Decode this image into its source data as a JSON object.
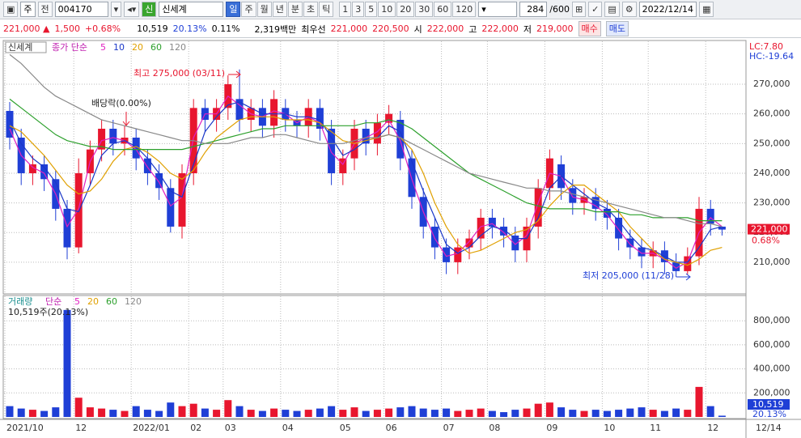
{
  "toolbar": {
    "market": "주",
    "prev": "전",
    "code": "004170",
    "badge": "신",
    "name": "신세계",
    "periods": [
      "일",
      "주",
      "월",
      "년",
      "분",
      "초",
      "틱"
    ],
    "steps": [
      "1",
      "3",
      "5",
      "10",
      "20",
      "30",
      "60",
      "120"
    ],
    "count": "284",
    "count_max": "/600",
    "date": "2022/12/14"
  },
  "quote": {
    "price": "221,000 ▲",
    "change": "1,500",
    "change_pct": "+0.68%",
    "volume": "10,519",
    "volume_pct": "20.13%",
    "turnover_pct": "0.11%",
    "amount": "2,319백만",
    "best_label": "최우선",
    "ask": "221,000",
    "bid": "220,500",
    "open_label": "시",
    "open": "222,000",
    "high_label": "고",
    "high": "222,000",
    "low_label": "저",
    "low": "219,000",
    "buy": "매수",
    "sell": "매도"
  },
  "chart_data": [
    {
      "type": "candlestick",
      "name": "신세계",
      "ma_label": "종가 단순",
      "categories": [
        "2021/10",
        null,
        null,
        null,
        null,
        null,
        "12",
        null,
        null,
        null,
        null,
        "2022/01",
        null,
        null,
        null,
        null,
        "02",
        null,
        null,
        "03",
        null,
        null,
        null,
        null,
        "04",
        null,
        null,
        null,
        null,
        "05",
        null,
        null,
        null,
        "06",
        null,
        null,
        null,
        null,
        "07",
        null,
        null,
        null,
        "08",
        null,
        null,
        null,
        null,
        "09",
        null,
        null,
        null,
        null,
        "10",
        null,
        null,
        null,
        "11",
        null,
        null,
        null,
        null,
        "12",
        null
      ],
      "x_end_label": "12/14",
      "open": [
        261000,
        252000,
        240000,
        243000,
        238000,
        228000,
        215000,
        240000,
        248000,
        255000,
        250000,
        252000,
        245000,
        240000,
        235000,
        222000,
        240000,
        262000,
        258000,
        262000,
        265000,
        258000,
        262000,
        256000,
        262000,
        258000,
        256000,
        262000,
        255000,
        240000,
        245000,
        255000,
        250000,
        257000,
        258000,
        245000,
        232000,
        222000,
        215000,
        210000,
        215000,
        218000,
        225000,
        222000,
        219000,
        214000,
        222000,
        235000,
        243000,
        235000,
        230000,
        232000,
        228000,
        225000,
        218000,
        215000,
        212000,
        214000,
        210000,
        207000,
        212000,
        228000,
        222000
      ],
      "high": [
        264000,
        255000,
        246000,
        246000,
        241000,
        231000,
        245000,
        251000,
        258000,
        258000,
        256000,
        255000,
        248000,
        243000,
        238000,
        243000,
        265000,
        265000,
        265000,
        273000,
        275000,
        265000,
        265000,
        268000,
        265000,
        261000,
        265000,
        265000,
        258000,
        248000,
        258000,
        258000,
        260000,
        263000,
        261000,
        248000,
        235000,
        225000,
        218000,
        218000,
        221000,
        228000,
        228000,
        225000,
        222000,
        225000,
        238000,
        248000,
        246000,
        238000,
        235000,
        235000,
        231000,
        228000,
        221000,
        218000,
        217000,
        217000,
        213000,
        215000,
        232000,
        231000,
        222000
      ],
      "low": [
        248000,
        236000,
        236000,
        234000,
        224000,
        211000,
        213000,
        236000,
        244000,
        246000,
        246000,
        241000,
        236000,
        231000,
        220000,
        218000,
        236000,
        254000,
        254000,
        258000,
        254000,
        254000,
        252000,
        252000,
        254000,
        252000,
        252000,
        251000,
        236000,
        236000,
        241000,
        246000,
        246000,
        253000,
        241000,
        228000,
        218000,
        211000,
        206000,
        206000,
        211000,
        214000,
        218000,
        215000,
        210000,
        210000,
        218000,
        231000,
        231000,
        226000,
        226000,
        224000,
        221000,
        214000,
        211000,
        208000,
        208000,
        206000,
        205000,
        206000,
        209000,
        219000,
        219000
      ],
      "close": [
        252000,
        240000,
        243000,
        238000,
        228000,
        215000,
        240000,
        248000,
        255000,
        250000,
        252000,
        245000,
        240000,
        235000,
        222000,
        240000,
        262000,
        258000,
        262000,
        270000,
        258000,
        262000,
        256000,
        265000,
        258000,
        256000,
        262000,
        255000,
        240000,
        245000,
        255000,
        250000,
        257000,
        260000,
        245000,
        232000,
        222000,
        215000,
        210000,
        215000,
        218000,
        225000,
        222000,
        219000,
        214000,
        222000,
        235000,
        245000,
        235000,
        230000,
        232000,
        228000,
        225000,
        218000,
        215000,
        212000,
        214000,
        210000,
        207000,
        212000,
        228000,
        223000,
        221000
      ],
      "up_color": "#e8162e",
      "down_color": "#1f3fd6",
      "series": [
        {
          "name": "5",
          "color": "#e020c0",
          "values": [
            255000,
            246000,
            242000,
            240000,
            233000,
            222000,
            228000,
            244000,
            251000,
            252000,
            251000,
            248000,
            242000,
            237000,
            229000,
            232000,
            252000,
            260000,
            260000,
            266000,
            263000,
            260000,
            259000,
            261000,
            260000,
            257000,
            259000,
            257000,
            247000,
            243000,
            250000,
            252000,
            254000,
            258000,
            251000,
            238000,
            227000,
            218000,
            212000,
            213000,
            217000,
            222000,
            223000,
            220000,
            216000,
            219000,
            230000,
            240000,
            239000,
            232000,
            231000,
            229000,
            226000,
            221000,
            216000,
            213000,
            213000,
            211000,
            208000,
            210000,
            220000,
            225000,
            222000
          ]
        },
        {
          "name": "10",
          "color": "#1a37c8",
          "values": [
            258000,
            250000,
            245000,
            242000,
            237000,
            228000,
            227000,
            236000,
            246000,
            250000,
            251000,
            249000,
            245000,
            240000,
            234000,
            232000,
            243000,
            254000,
            259000,
            263000,
            264000,
            262000,
            260000,
            260000,
            260000,
            259000,
            259000,
            258000,
            252000,
            246000,
            248000,
            251000,
            252000,
            256000,
            254000,
            244000,
            234000,
            225000,
            216000,
            213000,
            215000,
            219000,
            222000,
            221000,
            218000,
            218000,
            225000,
            235000,
            239000,
            236000,
            233000,
            230000,
            228000,
            224000,
            219000,
            215000,
            214000,
            212000,
            210000,
            210000,
            215000,
            221000,
            222000
          ]
        },
        {
          "name": "20",
          "color": "#e0a000",
          "values": [
            256000,
            254000,
            250000,
            246000,
            241000,
            236000,
            233000,
            234000,
            238000,
            244000,
            248000,
            249000,
            247000,
            244000,
            240000,
            238000,
            241000,
            247000,
            252000,
            255000,
            258000,
            259000,
            259000,
            259000,
            258000,
            258000,
            258000,
            257000,
            254000,
            251000,
            250000,
            251000,
            252000,
            253000,
            252000,
            248000,
            240000,
            230000,
            222000,
            216000,
            213000,
            214000,
            216000,
            218000,
            220000,
            221000,
            224000,
            229000,
            233000,
            236000,
            236000,
            233000,
            230000,
            227000,
            222000,
            218000,
            214000,
            211000,
            210000,
            209000,
            211000,
            214000,
            215000
          ]
        },
        {
          "name": "60",
          "color": "#2ca02c",
          "values": [
            265000,
            262000,
            259000,
            256000,
            253000,
            251000,
            250000,
            249000,
            249000,
            248000,
            248000,
            248000,
            248000,
            248000,
            248000,
            248000,
            249000,
            250000,
            251000,
            252000,
            253000,
            254000,
            255000,
            255000,
            256000,
            256000,
            256000,
            256000,
            256000,
            256000,
            256000,
            257000,
            257000,
            258000,
            257000,
            255000,
            252000,
            249000,
            246000,
            243000,
            240000,
            238000,
            236000,
            234000,
            232000,
            230000,
            229000,
            228000,
            228000,
            228000,
            228000,
            227000,
            227000,
            227000,
            226000,
            226000,
            225000,
            225000,
            225000,
            225000,
            224000,
            224000,
            224000
          ]
        },
        {
          "name": "120",
          "color": "#888888",
          "values": [
            280000,
            277000,
            273000,
            269000,
            266000,
            264000,
            262000,
            260000,
            258000,
            257000,
            256000,
            255000,
            254000,
            253000,
            252000,
            251000,
            251000,
            250000,
            250000,
            250000,
            251000,
            252000,
            252000,
            253000,
            253000,
            252000,
            251000,
            250000,
            250000,
            250000,
            251000,
            252000,
            252000,
            253000,
            252000,
            250000,
            248000,
            246000,
            244000,
            242000,
            240000,
            239000,
            238000,
            237000,
            236000,
            235000,
            235000,
            234000,
            234000,
            233000,
            232000,
            231000,
            230000,
            229000,
            228000,
            227000,
            226000,
            225000,
            225000,
            224000,
            223000,
            223000,
            222000
          ]
        }
      ],
      "ylim": [
        199600,
        284200
      ],
      "yticks": [
        {
          "value": 210000,
          "label": "210,000"
        },
        {
          "value": 220000,
          "label": "220,000"
        },
        {
          "value": 230000,
          "label": "230,000"
        },
        {
          "value": 240000,
          "label": "240,000"
        },
        {
          "value": 250000,
          "label": "250,000"
        },
        {
          "value": 260000,
          "label": "260,000"
        },
        {
          "value": 270000,
          "label": "270,000"
        }
      ],
      "grid": true,
      "high_note": "최고 275,000 (03/11)",
      "dividend_note": "배당락(0.00%)",
      "low_note": "최저 205,000 (11/28)",
      "lc": "LC:7.80",
      "hc": "HC:-19.64",
      "price_tag": "221,000",
      "change_tag": "0.68%"
    },
    {
      "type": "bar",
      "name": "거래량",
      "ma_label": "단순",
      "ma_names": [
        {
          "name": "5",
          "color": "#e020c0"
        },
        {
          "name": "20",
          "color": "#e0a000"
        },
        {
          "name": "60",
          "color": "#2ca02c"
        },
        {
          "name": "120",
          "color": "#888888"
        }
      ],
      "info": "10,519주(20.13%)",
      "volume_tag": "10,519",
      "pct_tag": "20.13%",
      "values": [
        90000,
        70000,
        60000,
        50000,
        80000,
        890000,
        160000,
        80000,
        70000,
        60000,
        50000,
        90000,
        60000,
        50000,
        120000,
        90000,
        110000,
        70000,
        60000,
        140000,
        90000,
        60000,
        50000,
        70000,
        60000,
        50000,
        60000,
        70000,
        90000,
        60000,
        80000,
        50000,
        60000,
        70000,
        80000,
        90000,
        70000,
        60000,
        70000,
        50000,
        60000,
        70000,
        50000,
        40000,
        60000,
        70000,
        110000,
        120000,
        80000,
        60000,
        50000,
        60000,
        50000,
        60000,
        70000,
        80000,
        60000,
        50000,
        70000,
        60000,
        250000,
        90000,
        10519
      ],
      "ylim": [
        0,
        990000
      ],
      "yticks": [
        {
          "value": 200000,
          "label": "200,000"
        },
        {
          "value": 400000,
          "label": "400,000"
        },
        {
          "value": 600000,
          "label": "600,000"
        },
        {
          "value": 800000,
          "label": "800,000"
        }
      ],
      "grid": true
    }
  ]
}
